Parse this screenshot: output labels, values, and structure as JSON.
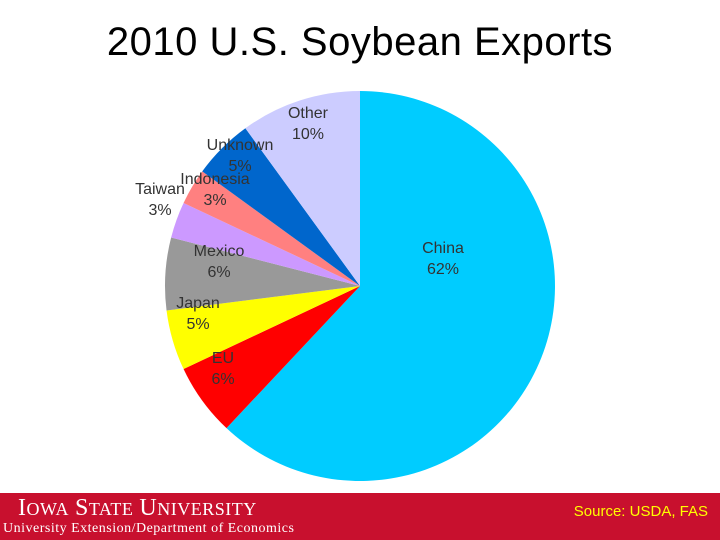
{
  "chart_data": {
    "type": "pie",
    "title": "2010 U.S. Soybean Exports",
    "slices": [
      {
        "name": "China",
        "value": 62,
        "label": "62%",
        "color": "#00ccff"
      },
      {
        "name": "EU",
        "value": 6,
        "label": "6%",
        "color": "#ff0000"
      },
      {
        "name": "Japan",
        "value": 5,
        "label": "5%",
        "color": "#ffff00"
      },
      {
        "name": "Mexico",
        "value": 6,
        "label": "6%",
        "color": "#999999"
      },
      {
        "name": "Taiwan",
        "value": 3,
        "label": "3%",
        "color": "#cc99ff"
      },
      {
        "name": "Indonesia",
        "value": 3,
        "label": "3%",
        "color": "#ff8080"
      },
      {
        "name": "Unknown",
        "value": 5,
        "label": "5%",
        "color": "#0066cc"
      },
      {
        "name": "Other",
        "value": 10,
        "label": "10%",
        "color": "#ccccff"
      }
    ]
  },
  "footer": {
    "university_name": "Iowa State University",
    "department": "University Extension/Department of Economics",
    "source": "Source: USDA, FAS",
    "bar_color": "#c8102e",
    "source_color": "#ffff00"
  }
}
